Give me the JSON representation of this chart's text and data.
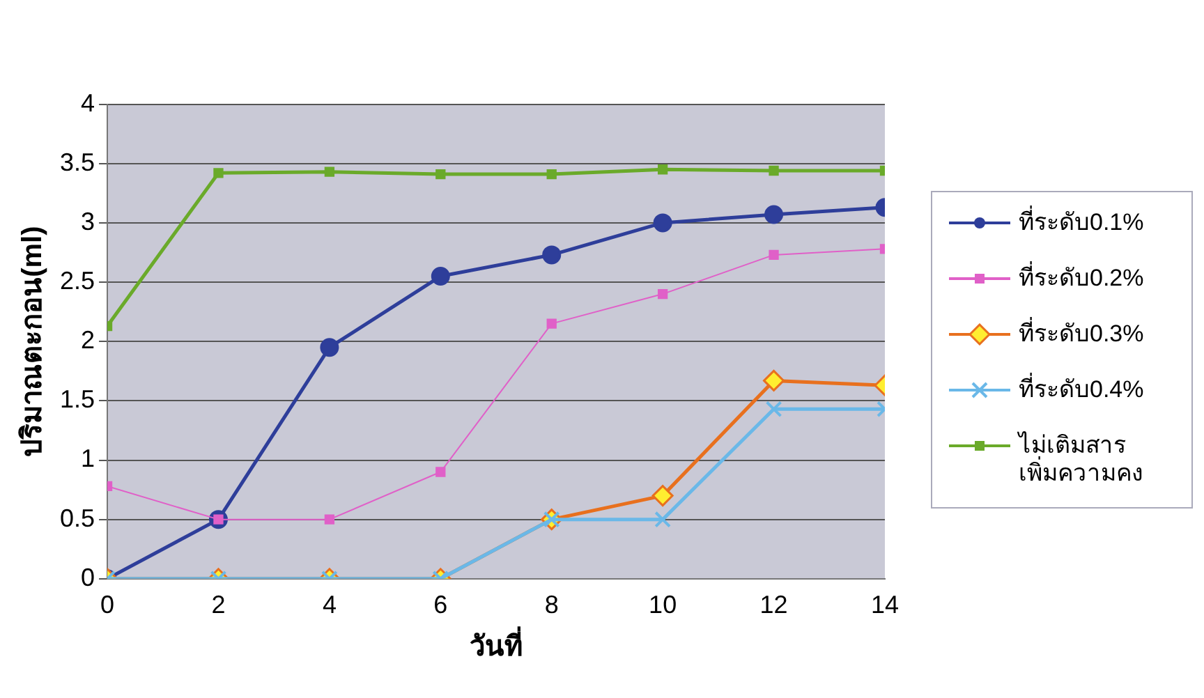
{
  "chart_data": {
    "type": "line",
    "xlabel": "วันที่",
    "ylabel": "ปริมาณตะกอน(ml)",
    "x": [
      0,
      2,
      4,
      6,
      8,
      10,
      12,
      14
    ],
    "xlim": [
      0,
      14
    ],
    "xticks": [
      0,
      2,
      4,
      6,
      8,
      10,
      12,
      14
    ],
    "ylim": [
      0,
      4
    ],
    "yticks": [
      0,
      0.5,
      1,
      1.5,
      2,
      2.5,
      3,
      3.5,
      4
    ],
    "grid": "y",
    "legend": "right",
    "line_style": "solid",
    "series": [
      {
        "name": "ที่ระดับ0.1%",
        "color": "#2e3e9a",
        "marker": "circle",
        "values": [
          0,
          0.5,
          1.95,
          2.55,
          2.73,
          3.0,
          3.07,
          3.13
        ]
      },
      {
        "name": "ที่ระดับ0.2%",
        "color": "#e060c8",
        "marker": "square",
        "values": [
          0.78,
          0.5,
          0.5,
          0.9,
          2.15,
          2.4,
          2.73,
          2.78
        ]
      },
      {
        "name": "ที่ระดับ0.3%",
        "color": "#e8701e",
        "marker": "diamond",
        "values": [
          0,
          0,
          0,
          0,
          0.5,
          0.7,
          1.67,
          1.63
        ]
      },
      {
        "name": "ที่ระดับ0.4%",
        "color": "#6ab8e8",
        "marker": "cross",
        "values": [
          0,
          0,
          0,
          0,
          0.5,
          0.5,
          1.43,
          1.43
        ]
      },
      {
        "name": "ไม่เติมสาร เพิ่มความคง",
        "color": "#6aaa2a",
        "marker": "square",
        "values": [
          2.13,
          3.42,
          3.43,
          3.41,
          3.41,
          3.45,
          3.44,
          3.44
        ]
      }
    ]
  }
}
